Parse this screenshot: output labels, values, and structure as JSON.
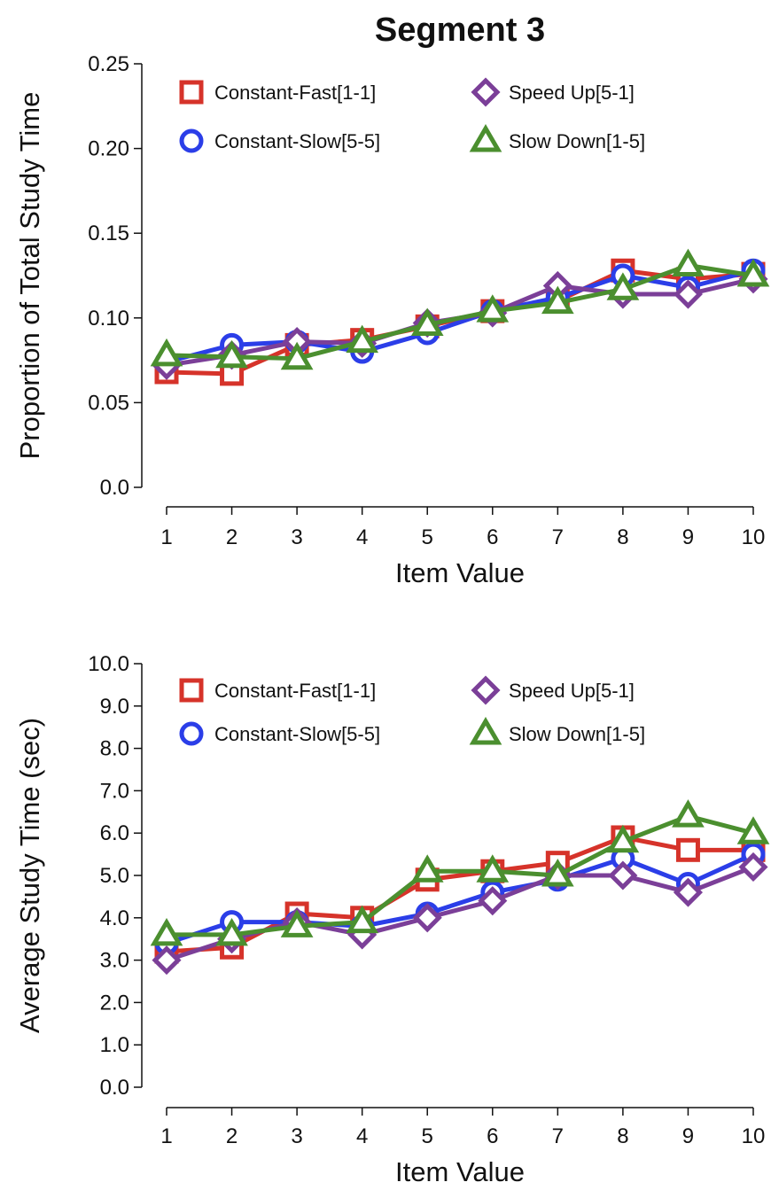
{
  "figure_title": "Segment 3",
  "chart_data": [
    {
      "type": "line",
      "title": "Segment 3",
      "xlabel": "Item Value",
      "ylabel": "Proportion of Total Study Time",
      "categories": [
        1,
        2,
        3,
        4,
        5,
        6,
        7,
        8,
        9,
        10
      ],
      "x_tick_labels": [
        "1",
        "2",
        "3",
        "4",
        "5",
        "6",
        "7",
        "8",
        "9",
        "10"
      ],
      "ylim": [
        0,
        0.25
      ],
      "y_ticks": [
        0,
        0.05,
        0.1,
        0.15,
        0.2,
        0.25
      ],
      "y_tick_labels": [
        "0.0",
        "0.05",
        "0.10",
        "0.15",
        "0.20",
        "0.25"
      ],
      "grid": false,
      "legend_position": "top-left",
      "legend": [
        "Constant-Fast[1-1]",
        "Speed Up[5-1]",
        "Constant-Slow[5-5]",
        "Slow Down[1-5]"
      ],
      "series": [
        {
          "name": "Constant-Fast[1-1]",
          "marker": "square",
          "color": "#d6332a",
          "values": [
            0.068,
            0.067,
            0.084,
            0.087,
            0.095,
            0.104,
            0.11,
            0.128,
            0.123,
            0.126
          ]
        },
        {
          "name": "Speed Up[5-1]",
          "marker": "diamond",
          "color": "#7b3f98",
          "values": [
            0.072,
            0.078,
            0.086,
            0.085,
            0.097,
            0.103,
            0.119,
            0.114,
            0.114,
            0.123
          ]
        },
        {
          "name": "Constant-Slow[5-5]",
          "marker": "circle",
          "color": "#2b3ee8",
          "values": [
            0.074,
            0.084,
            0.086,
            0.08,
            0.091,
            0.104,
            0.112,
            0.125,
            0.118,
            0.128
          ]
        },
        {
          "name": "Slow Down[1-5]",
          "marker": "triangle",
          "color": "#4b8f2f",
          "values": [
            0.078,
            0.077,
            0.076,
            0.086,
            0.096,
            0.104,
            0.109,
            0.117,
            0.131,
            0.125
          ]
        }
      ]
    },
    {
      "type": "line",
      "title": "",
      "xlabel": "Item Value",
      "ylabel": "Average Study Time (sec)",
      "categories": [
        1,
        2,
        3,
        4,
        5,
        6,
        7,
        8,
        9,
        10
      ],
      "x_tick_labels": [
        "1",
        "2",
        "3",
        "4",
        "5",
        "6",
        "7",
        "8",
        "9",
        "10"
      ],
      "ylim": [
        0,
        10
      ],
      "y_ticks": [
        0,
        1,
        2,
        3,
        4,
        5,
        6,
        7,
        8,
        9,
        10
      ],
      "y_tick_labels": [
        "0.0",
        "1.0",
        "2.0",
        "3.0",
        "4.0",
        "5.0",
        "6.0",
        "7.0",
        "8.0",
        "9.0",
        "10.0"
      ],
      "grid": false,
      "legend_position": "top-left",
      "legend": [
        "Constant-Fast[1-1]",
        "Speed Up[5-1]",
        "Constant-Slow[5-5]",
        "Slow Down[1-5]"
      ],
      "series": [
        {
          "name": "Constant-Fast[1-1]",
          "marker": "square",
          "color": "#d6332a",
          "values": [
            3.2,
            3.3,
            4.1,
            4.0,
            4.9,
            5.1,
            5.3,
            5.9,
            5.6,
            5.6
          ]
        },
        {
          "name": "Speed Up[5-1]",
          "marker": "diamond",
          "color": "#7b3f98",
          "values": [
            3.0,
            3.5,
            3.9,
            3.6,
            4.0,
            4.4,
            5.0,
            5.0,
            4.6,
            5.2
          ]
        },
        {
          "name": "Constant-Slow[5-5]",
          "marker": "circle",
          "color": "#2b3ee8",
          "values": [
            3.4,
            3.9,
            3.9,
            3.8,
            4.1,
            4.6,
            4.9,
            5.4,
            4.8,
            5.5
          ]
        },
        {
          "name": "Slow Down[1-5]",
          "marker": "triangle",
          "color": "#4b8f2f",
          "values": [
            3.6,
            3.6,
            3.8,
            3.9,
            5.1,
            5.1,
            5.0,
            5.8,
            6.4,
            6.0
          ]
        }
      ]
    }
  ]
}
